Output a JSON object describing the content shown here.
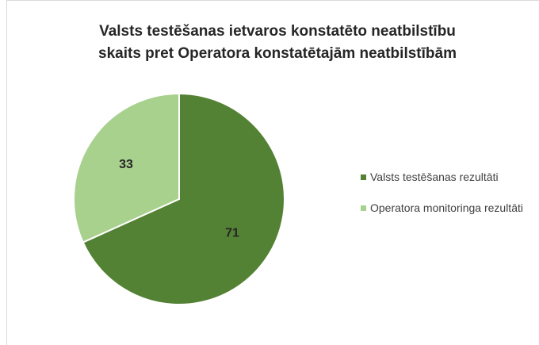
{
  "chart_data": {
    "type": "pie",
    "title": [
      "Valsts testēšanas ietvaros konstatēto neatbilstību",
      "skaits pret Operatora konstatētajām neatbilstībām"
    ],
    "categories": [
      "Valsts testēšanas rezultāti",
      "Operatora monitoringa rezultāti"
    ],
    "values": [
      71,
      33
    ],
    "colors": [
      "#548235",
      "#a9d18e"
    ]
  }
}
